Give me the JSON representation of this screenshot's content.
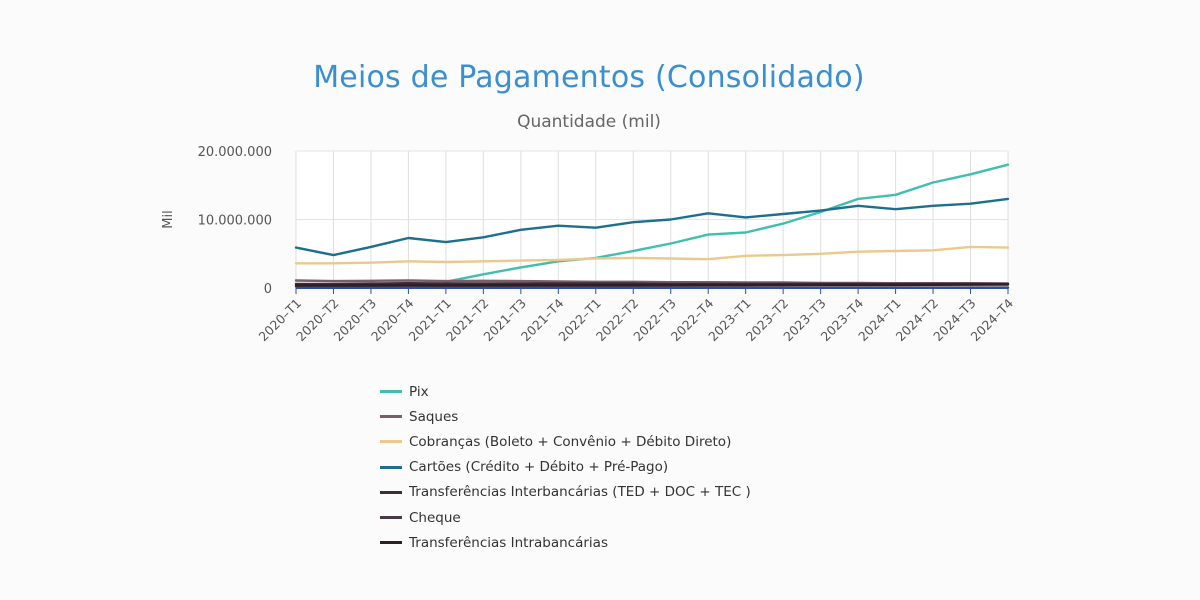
{
  "title": "Meios de Pagamentos (Consolidado)",
  "subtitle": "Quantidade (mil)",
  "chart_data": {
    "type": "line",
    "title": "Meios de Pagamentos (Consolidado)",
    "subtitle": "Quantidade (mil)",
    "ylabel": "Mil",
    "xlabel": "",
    "ylim": [
      0,
      20000000
    ],
    "yticks": [
      {
        "value": 0,
        "label": "0"
      },
      {
        "value": 10000000,
        "label": "10.000.000"
      },
      {
        "value": 20000000,
        "label": "20.000.000"
      }
    ],
    "grid": "vertical",
    "legend_position": "bottom",
    "categories": [
      "2020–T1",
      "2020–T2",
      "2020–T3",
      "2020–T4",
      "2021–T1",
      "2021–T2",
      "2021–T3",
      "2021–T4",
      "2022–T1",
      "2022–T2",
      "2022–T3",
      "2022–T4",
      "2023–T1",
      "2023–T2",
      "2023–T3",
      "2023–T4",
      "2024–T1",
      "2024–T2",
      "2024–T3",
      "2024–T4"
    ],
    "series": [
      {
        "name": "Pix",
        "color": "#40bfae",
        "values": [
          null,
          null,
          null,
          null,
          900000,
          2000000,
          3000000,
          3900000,
          4400000,
          5400000,
          6500000,
          7800000,
          8100000,
          9400000,
          11100000,
          13000000,
          13600000,
          15400000,
          16600000,
          18000000
        ]
      },
      {
        "name": "Saques",
        "color": "#7a5c6a",
        "values": [
          1100000,
          1000000,
          1050000,
          1100000,
          1000000,
          1050000,
          1000000,
          950000,
          900000,
          900000,
          850000,
          850000,
          800000,
          800000,
          750000,
          750000,
          700000,
          700000,
          700000,
          650000
        ]
      },
      {
        "name": "Cobranças (Boleto + Convênio + Débito Direto)",
        "color": "#ebc98a",
        "values": [
          3600000,
          3600000,
          3700000,
          3900000,
          3800000,
          3900000,
          4000000,
          4100000,
          4300000,
          4400000,
          4300000,
          4200000,
          4700000,
          4800000,
          5000000,
          5300000,
          5400000,
          5500000,
          6000000,
          5900000
        ]
      },
      {
        "name": "Cartões (Crédito + Débito + Pré-Pago)",
        "color": "#1d6f8e",
        "values": [
          5900000,
          4800000,
          6000000,
          7300000,
          6700000,
          7400000,
          8500000,
          9100000,
          8800000,
          9600000,
          10000000,
          10900000,
          10300000,
          10800000,
          11300000,
          12000000,
          11500000,
          12000000,
          12300000,
          13000000
        ]
      },
      {
        "name": "Transferências Interbancárias (TED + DOC + TEC )",
        "color": "#3a3030",
        "values": [
          600000,
          600000,
          650000,
          700000,
          650000,
          650000,
          650000,
          650000,
          650000,
          650000,
          600000,
          600000,
          600000,
          600000,
          600000,
          600000,
          600000,
          600000,
          600000,
          600000
        ]
      },
      {
        "name": "Cheque",
        "color": "#4a3a48",
        "values": [
          200000,
          180000,
          180000,
          170000,
          160000,
          150000,
          140000,
          130000,
          120000,
          110000,
          100000,
          95000,
          90000,
          85000,
          80000,
          75000,
          70000,
          65000,
          60000,
          55000
        ]
      },
      {
        "name": "Transferências Intrabancárias",
        "color": "#2e1e26",
        "values": [
          400000,
          380000,
          400000,
          420000,
          400000,
          410000,
          420000,
          430000,
          420000,
          430000,
          440000,
          450000,
          440000,
          450000,
          460000,
          470000,
          460000,
          470000,
          480000,
          490000
        ]
      }
    ]
  }
}
